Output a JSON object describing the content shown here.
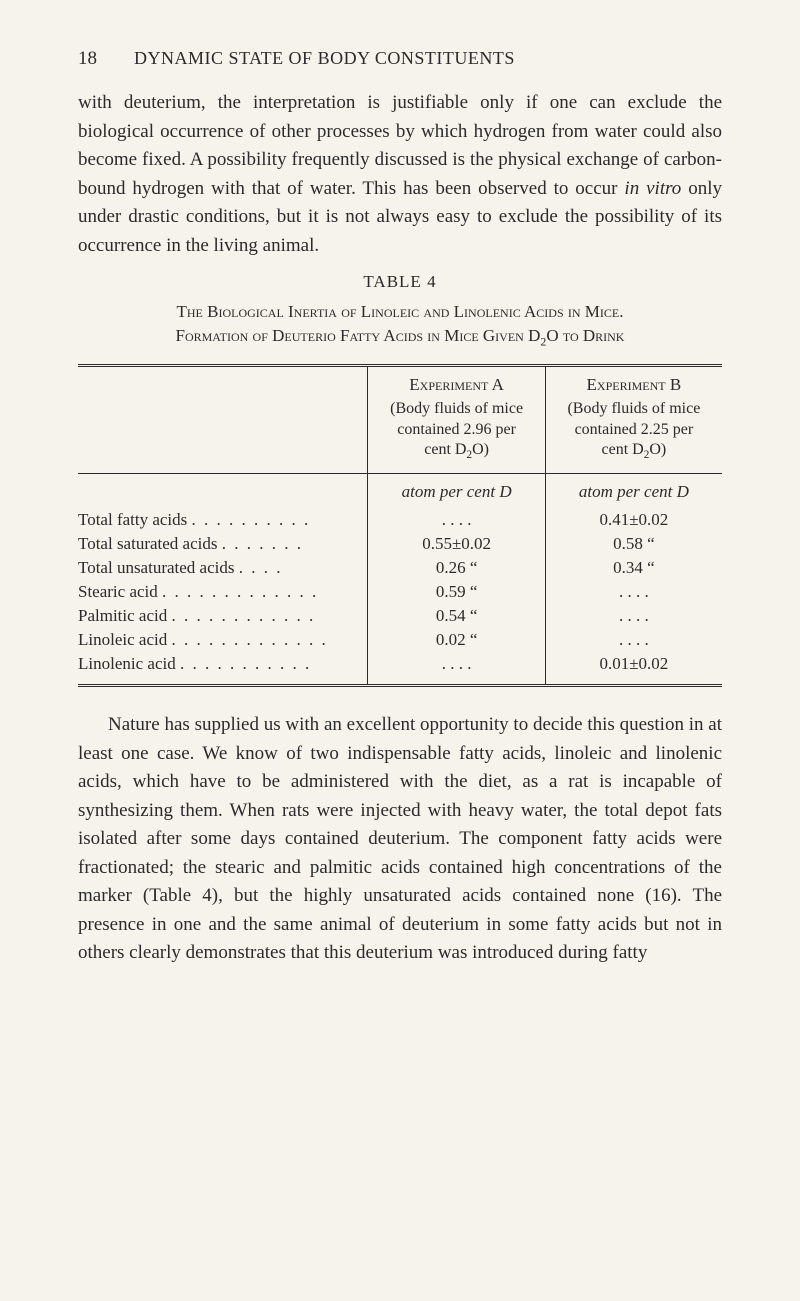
{
  "header": {
    "page_number": "18",
    "running_title": "DYNAMIC STATE OF BODY CONSTITUENTS"
  },
  "paragraph1": "with deuterium, the interpretation is justifiable only if one can exclude the biological occurrence of other processes by which hydrogen from water could also become fixed. A possibility frequently discussed is the physical exchange of carbon-bound hydrogen with that of water. This has been observed to occur ",
  "paragraph1_italic": "in vitro",
  "paragraph1_cont": " only under drastic conditions, but it is not always easy to exclude the possibility of its occurrence in the living animal.",
  "table": {
    "label": "TABLE 4",
    "caption_line1": "The Biological Inertia of Linoleic and Linolenic Acids in Mice.",
    "caption_line2_a": "Formation of Deuterio Fatty Acids in Mice Given D",
    "caption_line2_b": "O to Drink",
    "col_a_header": "Experiment A",
    "col_a_sub1": "(Body fluids of mice",
    "col_a_sub2": "contained 2.96 per",
    "col_a_sub3a": "cent D",
    "col_a_sub3b": "O)",
    "col_b_header": "Experiment B",
    "col_b_sub1": "(Body fluids of mice",
    "col_b_sub2": "contained 2.25 per",
    "col_b_sub3a": "cent D",
    "col_b_sub3b": "O)",
    "unit_a": "atom per cent D",
    "unit_b": "atom per cent D",
    "rows": [
      {
        "label": "Total fatty acids",
        "a": ". . . .",
        "b": "0.41±0.02"
      },
      {
        "label": "Total saturated acids",
        "a": "0.55±0.02",
        "b": "0.58    “"
      },
      {
        "label": "Total unsaturated acids",
        "a": "0.26    “",
        "b": "0.34    “"
      },
      {
        "label": "Stearic acid",
        "a": "0.59    “",
        "b": ". . . ."
      },
      {
        "label": "Palmitic acid",
        "a": "0.54    “",
        "b": ". . . ."
      },
      {
        "label": "Linoleic acid",
        "a": "0.02    “",
        "b": ". . . ."
      },
      {
        "label": "Linolenic acid",
        "a": ". . . .",
        "b": "0.01±0.02"
      }
    ]
  },
  "paragraph2": "Nature has supplied us with an excellent opportunity to decide this question in at least one case. We know of two indispensable fatty acids, linoleic and linolenic acids, which have to be administered with the diet, as a rat is incapable of synthesizing them. When rats were injected with heavy water, the total depot fats isolated after some days contained deuterium. The component fatty acids were fractionated; the stearic and palmitic acids contained high concentrations of the marker (Table 4), but the highly unsaturated acids contained none (16). The presence in one and the same animal of deuterium in some fatty acids but not in others clearly demonstrates that this deuterium was introduced during fatty"
}
